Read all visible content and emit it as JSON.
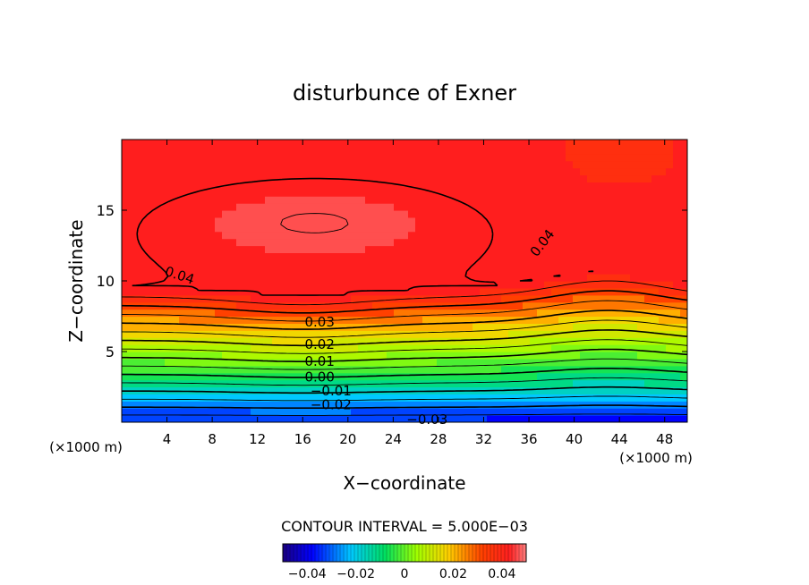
{
  "chart_data": {
    "type": "contour",
    "title": "disturbunce of Exner",
    "xlabel": "X−coordinate",
    "ylabel": "Z−coordinate",
    "x_unit_left": "(×1000 m)",
    "x_unit_right": "(×1000 m)",
    "xlim": [
      0,
      50
    ],
    "ylim": [
      0,
      20
    ],
    "x_ticks": [
      4,
      8,
      12,
      16,
      20,
      24,
      28,
      32,
      36,
      40,
      44,
      48
    ],
    "y_ticks": [
      5,
      10,
      15
    ],
    "contour_interval_text": "CONTOUR INTERVAL = 5.000E−03",
    "contour_interval": 0.005,
    "negative_contours_dashed": true,
    "contour_labels": [
      {
        "text": "0.04",
        "x": 5,
        "y": 10.4
      },
      {
        "text": "0.04",
        "x": 37.5,
        "y": 12.8
      },
      {
        "text": "0.03",
        "x": 17.5,
        "y": 7.1
      },
      {
        "text": "0.02",
        "x": 17.5,
        "y": 5.5
      },
      {
        "text": "0.01",
        "x": 17.5,
        "y": 4.3
      },
      {
        "text": "0.00",
        "x": 17.5,
        "y": 3.2
      },
      {
        "text": "−0.01",
        "x": 18.5,
        "y": 2.2
      },
      {
        "text": "−0.02",
        "x": 18.5,
        "y": 1.25
      },
      {
        "text": "−0.03",
        "x": 27,
        "y": 0.2
      }
    ],
    "colorbar": {
      "min": -0.05,
      "max": 0.05,
      "tick_labels": [
        "−0.04",
        "−0.02",
        "0",
        "0.02",
        "0.04"
      ],
      "tick_values": [
        -0.04,
        -0.02,
        0,
        0.02,
        0.04
      ]
    },
    "field_description_points": {
      "max_value": 0.045,
      "max_center": {
        "x": 17,
        "y": 14
      },
      "min_value": -0.04,
      "min_location": {
        "x": 44,
        "y": 0
      }
    }
  }
}
